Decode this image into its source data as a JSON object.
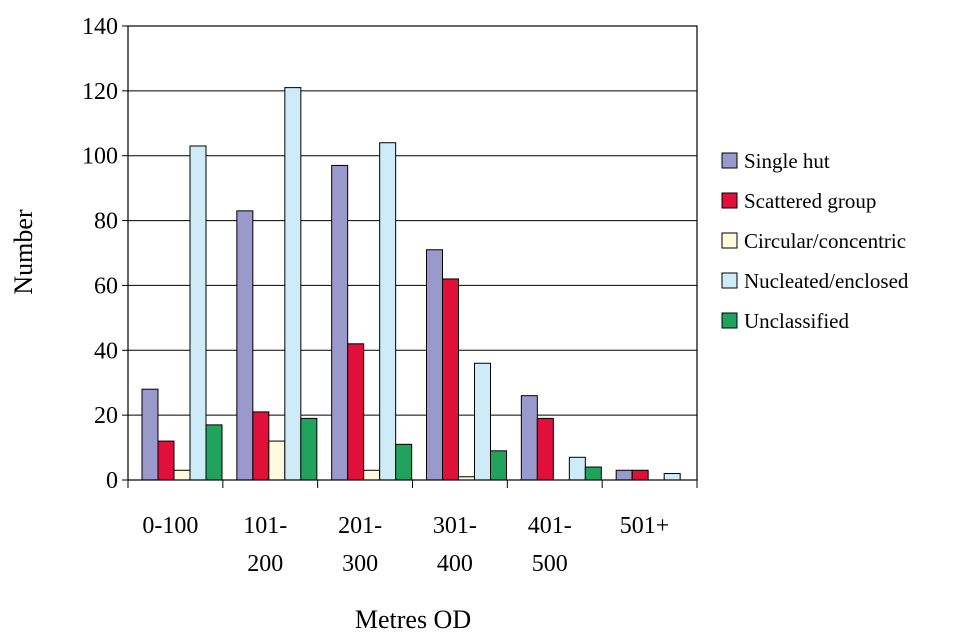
{
  "chart_data": {
    "type": "bar",
    "title": "",
    "xlabel": "Metres OD",
    "ylabel": "Number",
    "ylim": [
      0,
      140
    ],
    "yticks": [
      "0",
      "20",
      "40",
      "60",
      "80",
      "100",
      "120",
      "140"
    ],
    "grid": true,
    "legend_position": "right",
    "categories": [
      [
        "0-100"
      ],
      [
        "101-",
        "200"
      ],
      [
        "201-",
        "300"
      ],
      [
        "301-",
        "400"
      ],
      [
        "401-",
        "500"
      ],
      [
        "501+"
      ]
    ],
    "series": [
      {
        "name": "Single hut",
        "color": "#9999cc",
        "values": [
          28,
          83,
          97,
          71,
          26,
          3
        ]
      },
      {
        "name": "Scattered group",
        "color": "#e0103a",
        "values": [
          12,
          21,
          42,
          62,
          19,
          3
        ]
      },
      {
        "name": "Circular/concentric",
        "color": "#fdfadf",
        "values": [
          3,
          12,
          3,
          1,
          0,
          0
        ]
      },
      {
        "name": "Nucleated/enclosed",
        "color": "#cdecf7",
        "values": [
          103,
          121,
          104,
          36,
          7,
          2
        ]
      },
      {
        "name": "Unclassified",
        "color": "#21a35d",
        "values": [
          17,
          19,
          11,
          9,
          4,
          0
        ]
      }
    ]
  }
}
